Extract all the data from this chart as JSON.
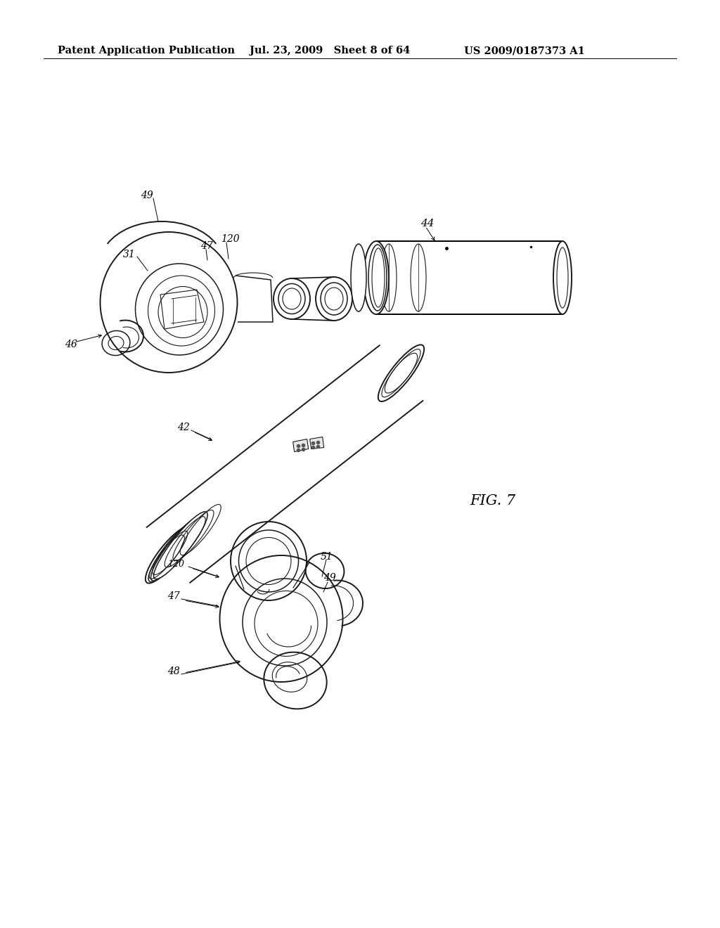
{
  "bg_color": "#ffffff",
  "header_left": "Patent Application Publication",
  "header_mid": "Jul. 23, 2009   Sheet 8 of 64",
  "header_right": "US 2009/0187373 A1",
  "fig_label": "FIG. 7",
  "line_color": "#1a1a1a",
  "header_fontsize": 10.5,
  "label_fontsize": 10
}
